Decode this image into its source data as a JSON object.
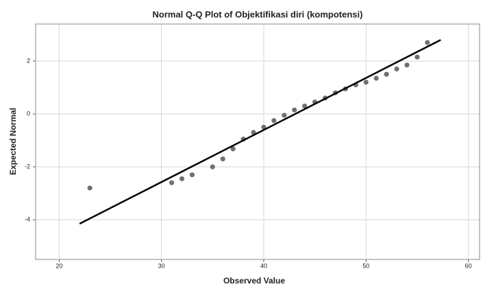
{
  "chart_data": {
    "type": "scatter",
    "title": "Normal Q-Q Plot of Objektifikasi diri (kompotensi)",
    "x_label": "Observed Value",
    "y_label": "Expected Normal",
    "series": [
      {
        "color": "#707070",
        "x": [
          23,
          31,
          32,
          33,
          35,
          36,
          37,
          38,
          39,
          40,
          41,
          42,
          43,
          44,
          45,
          46,
          47,
          48,
          49,
          50,
          51,
          52,
          53,
          54,
          55,
          56
        ],
        "values": [
          -2.8,
          -2.6,
          -2.45,
          -2.3,
          -2.0,
          -1.7,
          -1.32,
          -0.95,
          -0.7,
          -0.5,
          -0.25,
          -0.05,
          0.15,
          0.3,
          0.45,
          0.6,
          0.8,
          0.95,
          1.1,
          1.2,
          1.35,
          1.5,
          1.7,
          1.85,
          2.15,
          2.7
        ]
      }
    ],
    "reference_line": {
      "color": "#000000",
      "x": [
        22,
        57.3
      ],
      "values": [
        -4.15,
        2.8
      ]
    },
    "xlim": [
      17.7,
      61.1
    ],
    "ylim": [
      -5.5,
      3.4
    ],
    "xticks": [
      20,
      30,
      40,
      50,
      60
    ],
    "yticks": [
      -4,
      -2,
      0,
      2
    ],
    "grid": true
  }
}
